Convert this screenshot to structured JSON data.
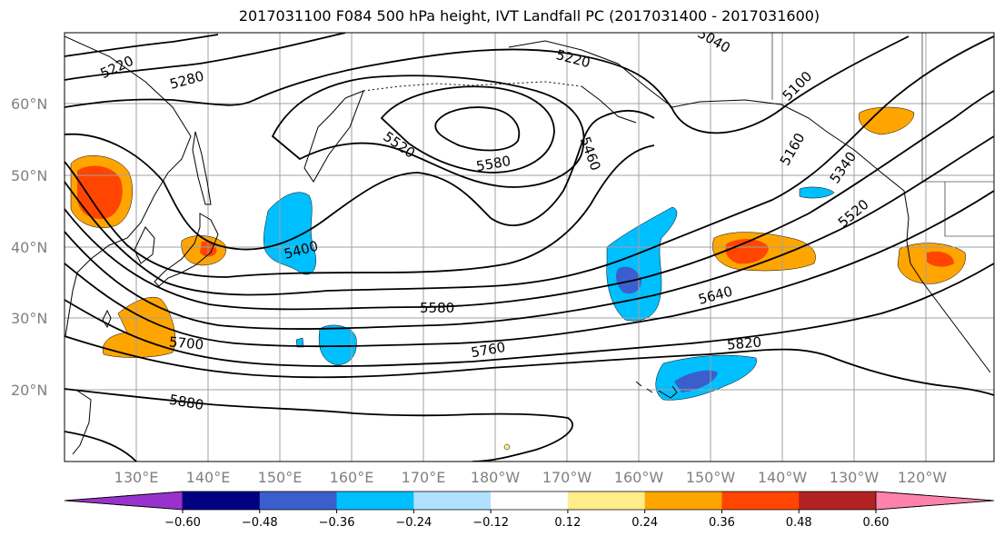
{
  "title": "2017031100 F084 500 hPa height, IVT Landfall PC (2017031400 - 2017031600)",
  "map": {
    "lon_labels": [
      "130°E",
      "140°E",
      "150°E",
      "160°E",
      "170°E",
      "180°W",
      "170°W",
      "160°W",
      "150°W",
      "140°W",
      "130°W",
      "120°W"
    ],
    "lat_labels": [
      "60°N",
      "50°N",
      "40°N",
      "30°N",
      "20°N"
    ],
    "contour_labels": [
      "5220",
      "5280",
      "5220",
      "5040",
      "5100",
      "5520",
      "5580",
      "5460",
      "5160",
      "5340",
      "5520",
      "5400",
      "5580",
      "5640",
      "5700",
      "5760",
      "5820",
      "5880"
    ],
    "colors": {
      "land_border": "#000000",
      "grid": "#a0a0a0"
    }
  },
  "chart_data": {
    "type": "heatmap",
    "field_contours": "500 hPa height",
    "field_shaded": "IVT Landfall PC",
    "contour_levels": [
      5040,
      5100,
      5160,
      5220,
      5280,
      5340,
      5400,
      5460,
      5520,
      5580,
      5640,
      5700,
      5760,
      5820,
      5880
    ],
    "colorbar": {
      "ticks": [
        "−0.60",
        "−0.48",
        "−0.36",
        "−0.24",
        "−0.12",
        "0.12",
        "0.24",
        "0.36",
        "0.48",
        "0.60"
      ],
      "bins": [
        {
          "range": "< -0.60",
          "color": "#9932cc"
        },
        {
          "range": "-0.60 to -0.48",
          "color": "#000080"
        },
        {
          "range": "-0.48 to -0.36",
          "color": "#3a5fcd"
        },
        {
          "range": "-0.36 to -0.24",
          "color": "#00bfff"
        },
        {
          "range": "-0.24 to -0.12",
          "color": "#b0e2ff"
        },
        {
          "range": "-0.12 to 0.12",
          "color": "#ffffff"
        },
        {
          "range": "0.12 to 0.24",
          "color": "#ffec8b"
        },
        {
          "range": "0.24 to 0.36",
          "color": "#ffa500"
        },
        {
          "range": "0.36 to 0.48",
          "color": "#ff4500"
        },
        {
          "range": "0.48 to 0.60",
          "color": "#b22222"
        },
        {
          "range": "> 0.60",
          "color": "#ff82ab"
        }
      ]
    }
  }
}
